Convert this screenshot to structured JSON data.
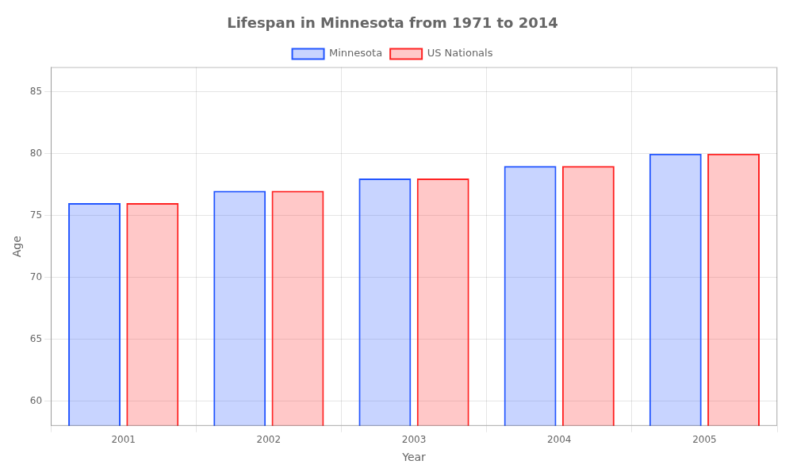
{
  "chart_data": {
    "type": "bar",
    "title": "Lifespan in Minnesota from 1971 to 2014",
    "xlabel": "Year",
    "ylabel": "Age",
    "categories": [
      2001,
      2002,
      2003,
      2004,
      2005
    ],
    "series": [
      {
        "name": "Minnesota",
        "color": "#2255ff",
        "values": [
          76,
          77,
          78,
          79,
          80
        ]
      },
      {
        "name": "US Nationals",
        "color": "#ff2222",
        "values": [
          76,
          77,
          78,
          79,
          80
        ]
      }
    ],
    "ylim": [
      58,
      87
    ],
    "yticks": [
      60,
      65,
      70,
      75,
      80,
      85
    ],
    "grid": true,
    "legend": "top"
  }
}
